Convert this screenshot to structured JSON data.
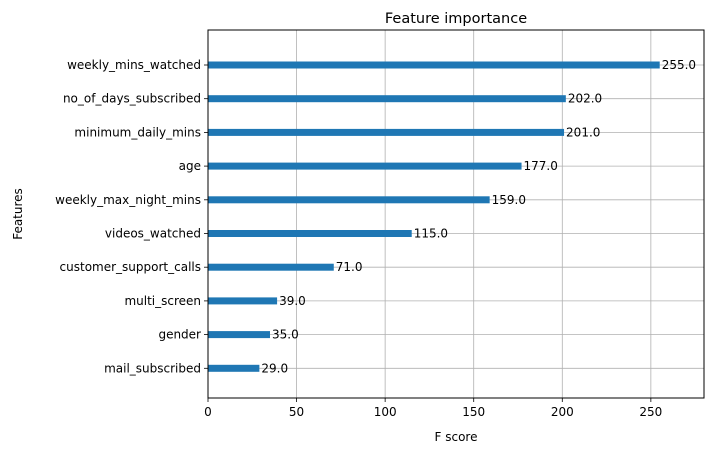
{
  "chart_data": {
    "type": "bar",
    "orientation": "horizontal",
    "title": "Feature importance",
    "xlabel": "F score",
    "ylabel": "Features",
    "xlim": [
      0,
      280
    ],
    "xticks": [
      0,
      50,
      100,
      150,
      200,
      250
    ],
    "grid": true,
    "bar_color": "#1f77b4",
    "categories": [
      "weekly_mins_watched",
      "no_of_days_subscribed",
      "minimum_daily_mins",
      "age",
      "weekly_max_night_mins",
      "videos_watched",
      "customer_support_calls",
      "multi_screen",
      "gender",
      "mail_subscribed"
    ],
    "values": [
      255,
      202,
      201,
      177,
      159,
      115,
      71,
      39,
      35,
      29
    ],
    "value_labels": [
      "255.0",
      "202.0",
      "201.0",
      "177.0",
      "159.0",
      "115.0",
      "71.0",
      "39.0",
      "35.0",
      "29.0"
    ]
  }
}
